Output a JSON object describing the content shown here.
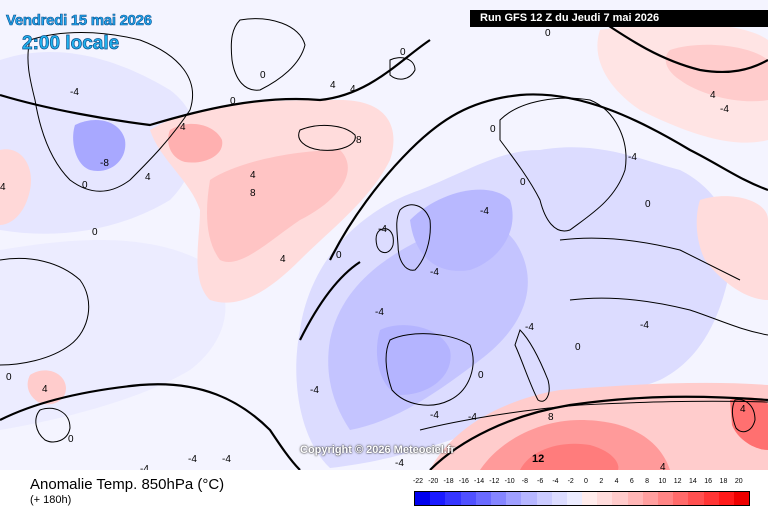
{
  "header": {
    "date_label": "Vendredi 15 mai 2026",
    "time_label": "2:00 locale",
    "run_label": "Run GFS 12 Z du Jeudi 7 mai 2026"
  },
  "watermark": {
    "copyright": "Copyright © 2026 Meteociel.fr"
  },
  "footer": {
    "title": "Anomalie Temp. 850hPa (°C)",
    "subtitle": "(+ 180h)"
  },
  "scale": {
    "labels": [
      "-22",
      "-20",
      "-18",
      "-16",
      "-14",
      "-12",
      "-10",
      "-8",
      "-6",
      "-4",
      "-2",
      "0",
      "2",
      "4",
      "6",
      "8",
      "10",
      "12",
      "14",
      "16",
      "18",
      "20"
    ],
    "colors": [
      "#0000ee",
      "#1a1aff",
      "#3535ff",
      "#5050ff",
      "#6a6aff",
      "#8585ff",
      "#9f9fff",
      "#b6b6ff",
      "#cbcbff",
      "#dcdcff",
      "#ececff",
      "#ffecec",
      "#ffdcdc",
      "#ffcbcb",
      "#ffb6b6",
      "#ff9f9f",
      "#ff8585",
      "#ff6a6a",
      "#ff5050",
      "#ff3535",
      "#ff1a1a",
      "#ee0000"
    ]
  },
  "map_labels": [
    "0",
    "4",
    "-4",
    "8",
    "-8",
    "12"
  ]
}
